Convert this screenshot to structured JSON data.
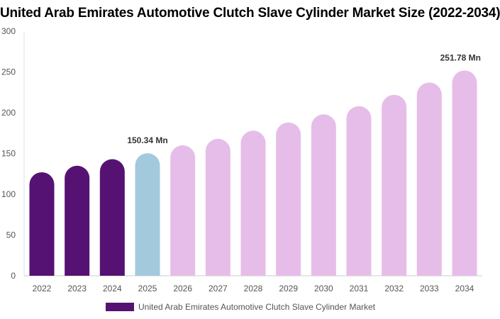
{
  "chart_data": {
    "type": "bar",
    "title": "United Arab Emirates Automotive Clutch Slave Cylinder Market Size (2022-2034)",
    "categories": [
      "2022",
      "2023",
      "2024",
      "2025",
      "2026",
      "2027",
      "2028",
      "2029",
      "2030",
      "2031",
      "2032",
      "2033",
      "2034"
    ],
    "series": [
      {
        "name": "United Arab Emirates Automotive Clutch Slave Cylinder Market",
        "values": [
          127,
          135,
          143,
          150.34,
          160,
          168,
          178,
          188,
          198,
          208,
          222,
          237,
          251.78
        ]
      }
    ],
    "data_labels": [
      {
        "category": "2025",
        "text": "150.34 Mn"
      },
      {
        "category": "2034",
        "text": "251.78 Mn"
      }
    ],
    "ylim": [
      0,
      300
    ],
    "yticks": [
      0,
      50,
      100,
      150,
      200,
      250,
      300
    ],
    "xlabel": "",
    "ylabel": "",
    "grid": false,
    "legend_position": "bottom",
    "colors": {
      "historical": "#561273",
      "base_year": "#a3cadc",
      "forecast": "#e6bde8",
      "legend": "#561273"
    },
    "bar_color_groups": [
      "historical",
      "historical",
      "historical",
      "base_year",
      "forecast",
      "forecast",
      "forecast",
      "forecast",
      "forecast",
      "forecast",
      "forecast",
      "forecast",
      "forecast"
    ]
  }
}
